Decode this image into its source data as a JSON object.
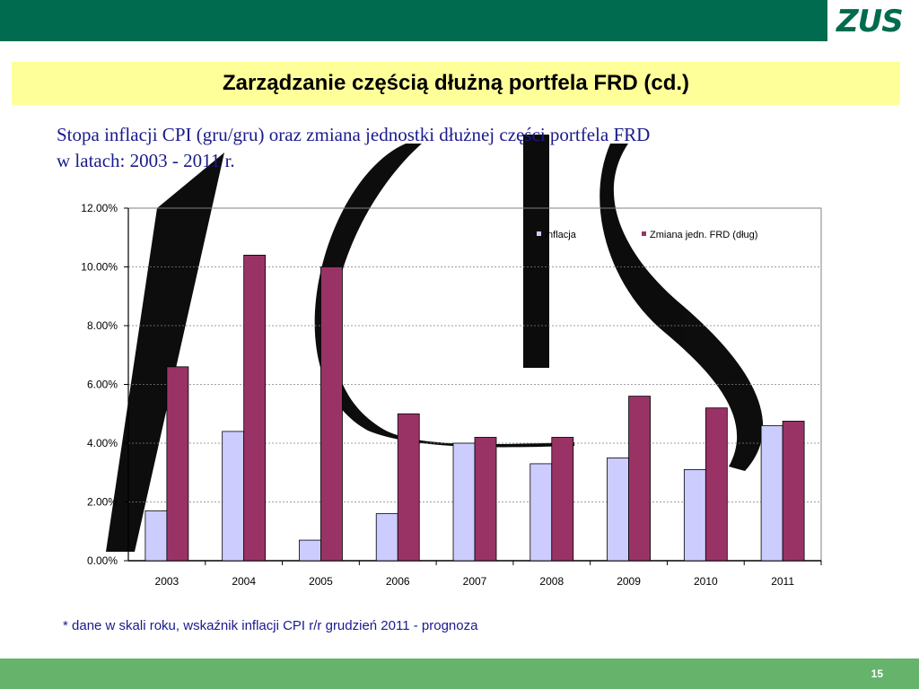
{
  "header": {
    "logo_text": "ZUS"
  },
  "slide": {
    "title": "Zarządzanie częścią dłużną portfela FRD (cd.)",
    "subtitle_line1": "Stopa inflacji CPI (gru/gru) oraz zmiana jednostki dłużnej części portfela FRD",
    "subtitle_line2": "w latach: 2003 - 2011 r.",
    "footnote": "* dane w skali roku, wskaźnik inflacji CPI r/r grudzień 2011 - prognoza",
    "page_number": "15"
  },
  "colors": {
    "inflacja": "#ccccff",
    "zmiana": "#993366",
    "header_green": "#006b4e",
    "footer_green": "#66b36b",
    "title_bg": "#ffff99"
  },
  "chart_data": {
    "type": "bar",
    "categories": [
      "2003",
      "2004",
      "2005",
      "2006",
      "2007",
      "2008",
      "2009",
      "2010",
      "2011"
    ],
    "series": [
      {
        "name": "Inflacja",
        "values": [
          1.7,
          4.4,
          0.7,
          1.6,
          4.0,
          3.3,
          3.5,
          3.1,
          4.6
        ]
      },
      {
        "name": "Zmiana jedn. FRD (dług)",
        "values": [
          6.6,
          10.4,
          10.0,
          5.0,
          4.2,
          4.2,
          5.6,
          5.2,
          4.75
        ]
      }
    ],
    "ylim": [
      0,
      12
    ],
    "yticks": [
      0,
      2,
      4,
      6,
      8,
      10,
      12
    ],
    "ytick_labels": [
      "0.00%",
      "2.00%",
      "4.00%",
      "6.00%",
      "8.00%",
      "10.00%",
      "12.00%"
    ],
    "grid": true,
    "legend_position": "top-right"
  }
}
